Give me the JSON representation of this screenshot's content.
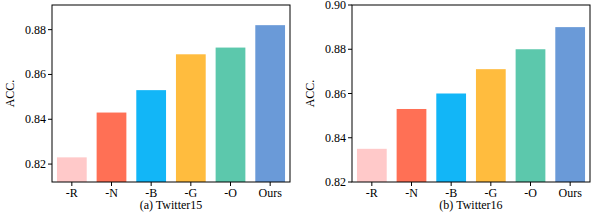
{
  "chart_data": [
    {
      "type": "bar",
      "title": "(a) Twitter15",
      "y_label": "ACC.",
      "categories": [
        "-R",
        "-N",
        "-B",
        "-G",
        "-O",
        "Ours"
      ],
      "values": [
        0.823,
        0.843,
        0.853,
        0.869,
        0.872,
        0.882
      ],
      "colors": [
        "#ffc9c9",
        "#ff7055",
        "#12b6f7",
        "#ffbc3e",
        "#5cc8ac",
        "#6a9ad8"
      ],
      "ylim": [
        0.812,
        0.891
      ],
      "yticks": [
        0.82,
        0.84,
        0.86,
        0.88
      ],
      "grid": false
    },
    {
      "type": "bar",
      "title": "(b) Twitter16",
      "y_label": "ACC.",
      "categories": [
        "-R",
        "-N",
        "-B",
        "-G",
        "-O",
        "Ours"
      ],
      "values": [
        0.835,
        0.853,
        0.86,
        0.871,
        0.88,
        0.89
      ],
      "colors": [
        "#ffc9c9",
        "#ff7055",
        "#12b6f7",
        "#ffbc3e",
        "#5cc8ac",
        "#6a9ad8"
      ],
      "ylim": [
        0.82,
        0.9
      ],
      "yticks": [
        0.82,
        0.84,
        0.86,
        0.88,
        {
          "value": 0.9,
          "label": "0.90"
        }
      ],
      "grid": false
    }
  ]
}
